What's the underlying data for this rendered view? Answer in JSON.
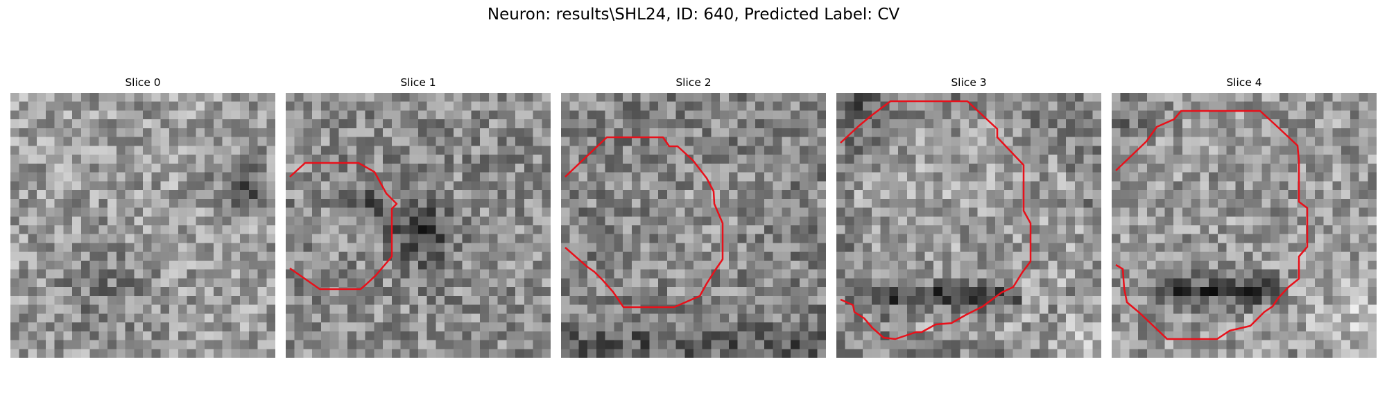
{
  "figure": {
    "title": "Neuron: results\\SHL24, ID: 640, Predicted Label: CV"
  },
  "slices": [
    {
      "label": "Slice 0",
      "has_roi": false
    },
    {
      "label": "Slice 1",
      "has_roi": true
    },
    {
      "label": "Slice 2",
      "has_roi": true
    },
    {
      "label": "Slice 3",
      "has_roi": true
    },
    {
      "label": "Slice 4",
      "has_roi": true
    }
  ],
  "colors": {
    "roi": "#e8101a",
    "background": "#ffffff"
  }
}
